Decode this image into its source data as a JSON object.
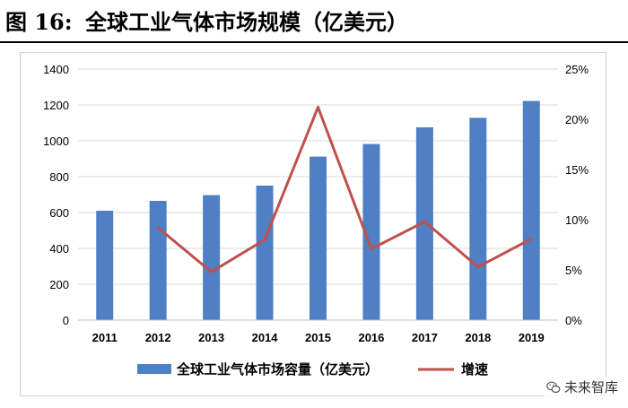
{
  "figure": {
    "label": "图",
    "number": "16:",
    "title": "全球工业气体市场规模（亿美元）"
  },
  "watermark": {
    "text": "未来智库",
    "icon": "wechat-icon"
  },
  "chart_data": {
    "type": "bar",
    "categories": [
      "2011",
      "2012",
      "2013",
      "2014",
      "2015",
      "2016",
      "2017",
      "2018",
      "2019"
    ],
    "series": [
      {
        "name": "全球工业气体市场容量（亿美元）",
        "type": "bar",
        "axis": "left",
        "color": "#4f7fc4",
        "values": [
          610,
          665,
          697,
          750,
          912,
          982,
          1075,
          1128,
          1222
        ]
      },
      {
        "name": "增速",
        "type": "line",
        "axis": "right",
        "color": "#c0504d",
        "values": [
          null,
          9.2,
          4.8,
          8.0,
          21.2,
          7.1,
          9.8,
          5.3,
          8.1
        ]
      }
    ],
    "y_left": {
      "min": 0,
      "max": 1400,
      "ticks": [
        "0",
        "200",
        "400",
        "600",
        "800",
        "1000",
        "1200",
        "1400"
      ]
    },
    "y_right": {
      "min": 0,
      "max": 25,
      "ticks": [
        "0%",
        "5%",
        "10%",
        "15%",
        "20%",
        "25%"
      ]
    },
    "grid": true,
    "legend_position": "bottom"
  }
}
